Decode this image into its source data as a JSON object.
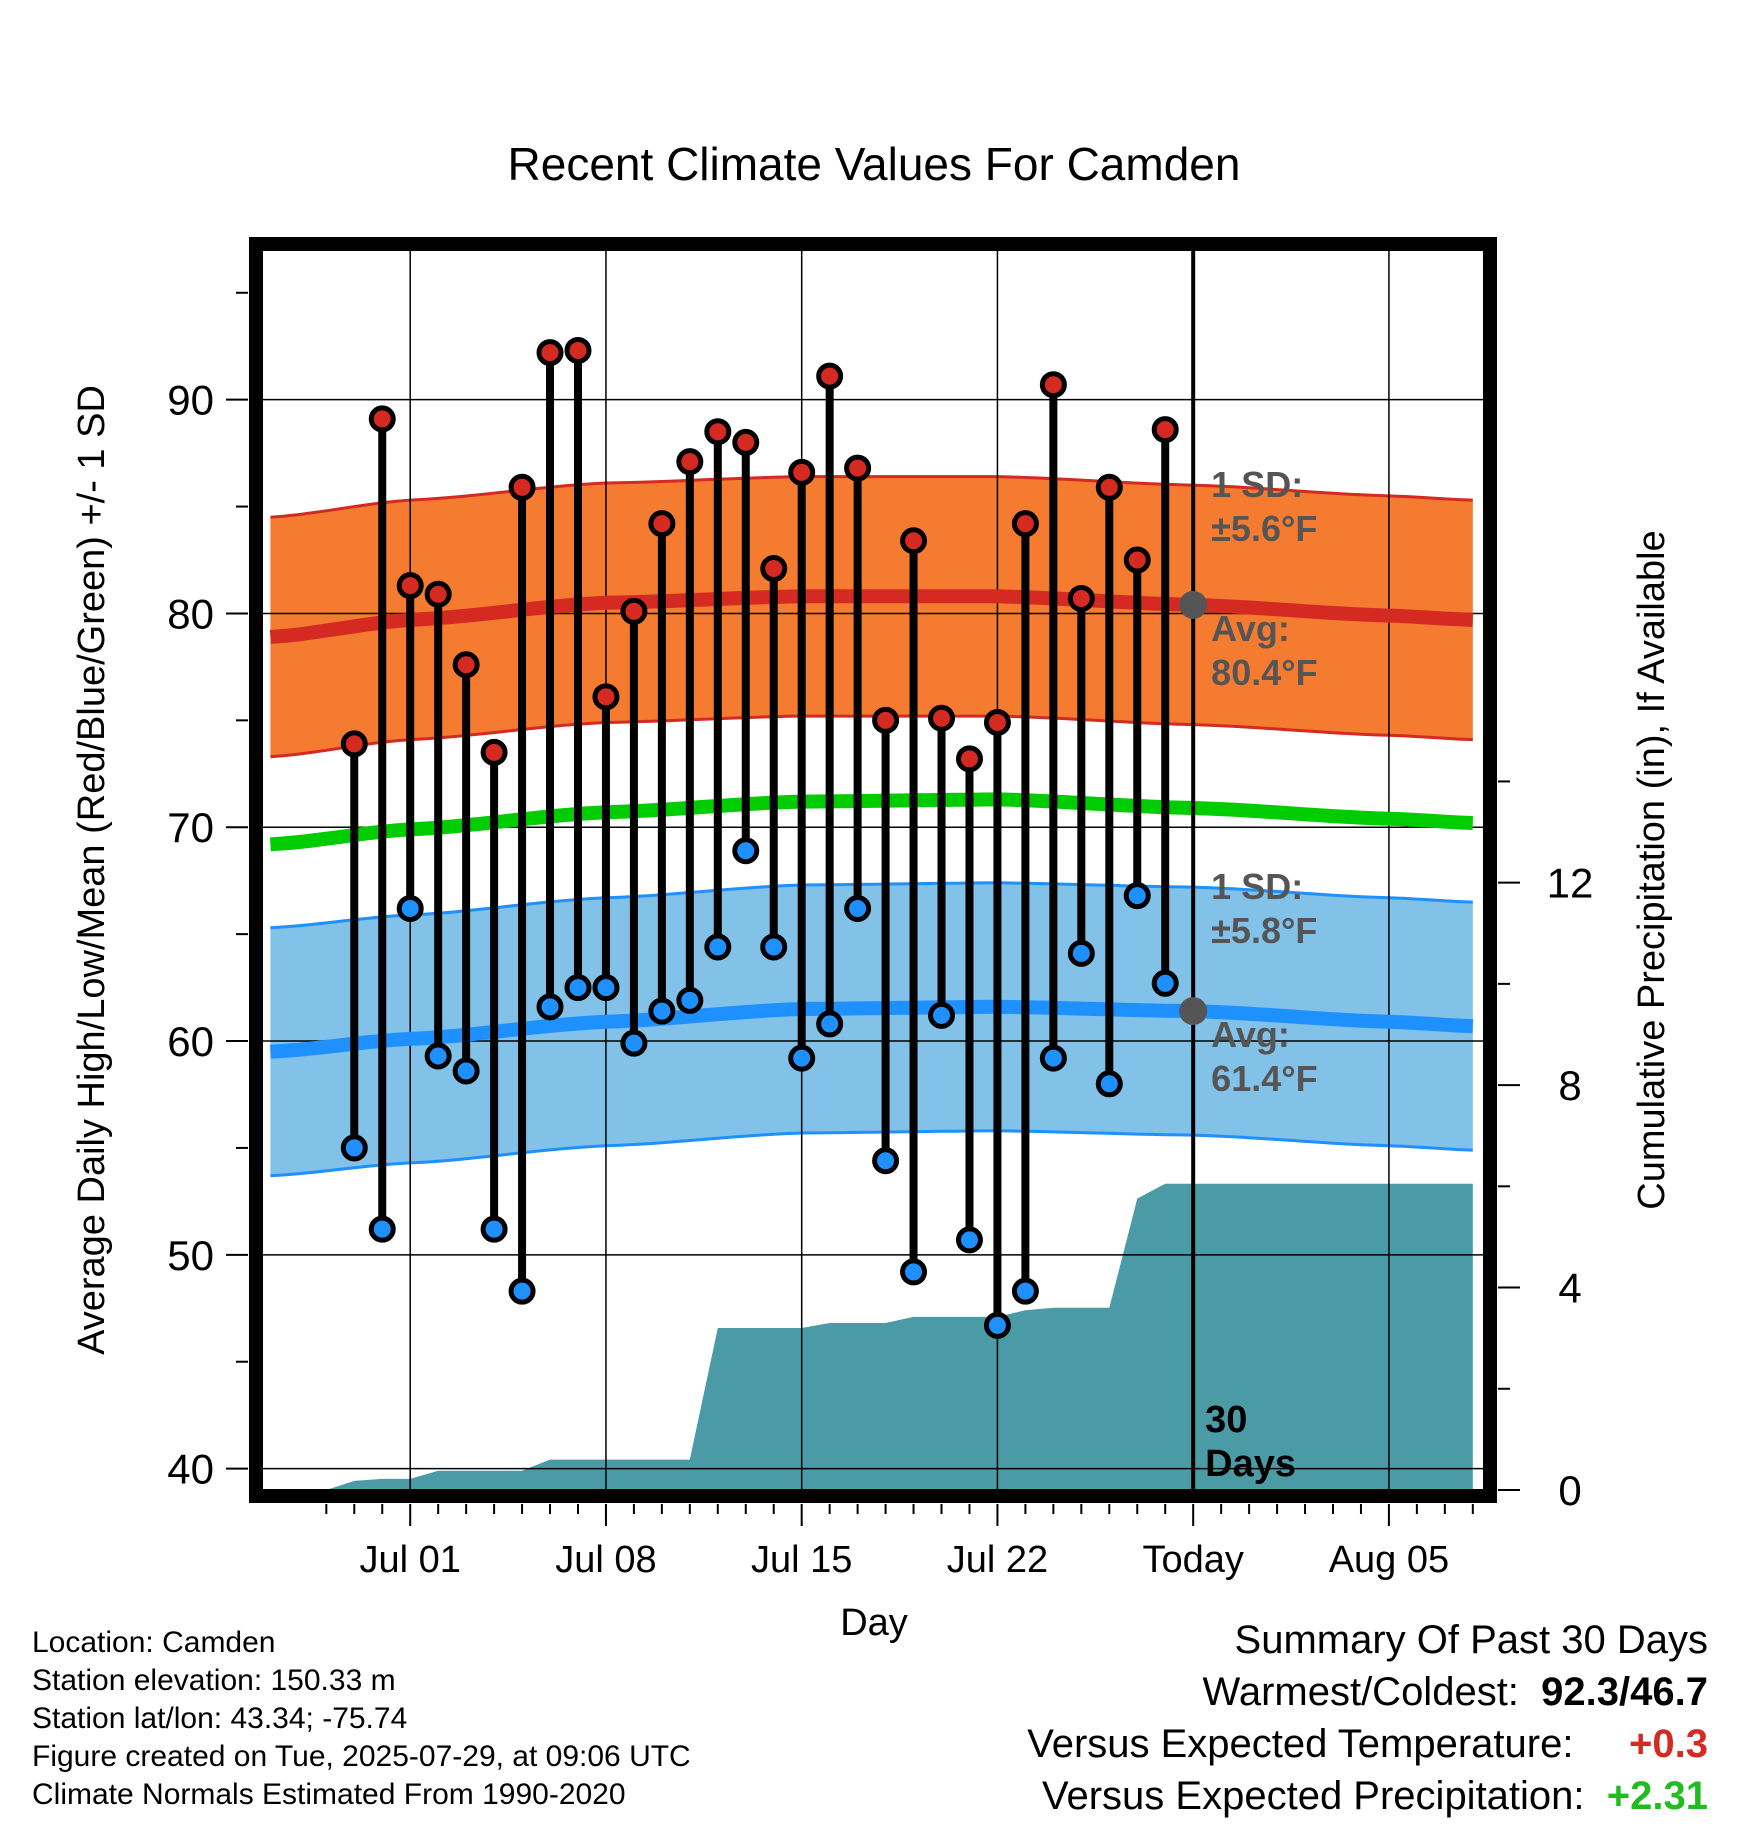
{
  "chart_data": {
    "type": "line",
    "title": "Recent Climate Values For Camden",
    "xlabel": "Day",
    "ylabel": "Average Daily High/Low/Mean (Red/Blue/Green) +/- 1 SD",
    "y2label": "Cumulative Precipitation (in), If Available",
    "ylim": [
      39,
      97
    ],
    "y2lim": [
      0,
      24.5
    ],
    "yticks": [
      40,
      50,
      60,
      70,
      80,
      90
    ],
    "y2ticks": [
      0,
      4,
      8,
      12
    ],
    "xlim_days": [
      -33.3,
      10.4
    ],
    "xticks": [
      {
        "day": -28,
        "label": "Jul 01"
      },
      {
        "day": -21,
        "label": "Jul 08"
      },
      {
        "day": -14,
        "label": "Jul 15"
      },
      {
        "day": -7,
        "label": "Jul 22"
      },
      {
        "day": 0,
        "label": "Today"
      },
      {
        "day": 7,
        "label": "Aug 05"
      }
    ],
    "grid": true,
    "highs": [
      73.9,
      89.1,
      81.3,
      80.9,
      77.6,
      73.5,
      85.9,
      92.2,
      92.3,
      76.1,
      80.1,
      84.2,
      87.1,
      88.5,
      88.0,
      82.1,
      86.6,
      91.1,
      86.8,
      75.0,
      83.4,
      75.1,
      73.2,
      74.9,
      84.2,
      90.7,
      80.7,
      85.9,
      82.5,
      88.6
    ],
    "lows": [
      55.0,
      51.2,
      66.2,
      59.3,
      58.6,
      51.2,
      48.3,
      61.6,
      62.5,
      62.5,
      59.9,
      61.4,
      61.9,
      64.4,
      68.9,
      64.4,
      59.2,
      60.8,
      66.2,
      54.4,
      49.2,
      61.2,
      50.7,
      46.7,
      48.3,
      59.2,
      64.1,
      58.0,
      66.8,
      62.7
    ],
    "normal_days": [
      -33,
      -28,
      -21,
      -14,
      -7,
      0,
      7,
      10
    ],
    "normal_high_avg": [
      78.9,
      79.7,
      80.5,
      80.8,
      80.8,
      80.4,
      79.9,
      79.7
    ],
    "normal_low_avg": [
      59.5,
      60.1,
      60.9,
      61.5,
      61.6,
      61.4,
      60.9,
      60.7
    ],
    "normal_mean": [
      69.2,
      69.9,
      70.7,
      71.2,
      71.3,
      70.9,
      70.4,
      70.2
    ],
    "high_sd": 5.6,
    "low_sd": 5.8,
    "precip_days": [
      -32,
      -31,
      -30,
      -29,
      -28,
      -27,
      -26,
      -25,
      -24,
      -23,
      -22,
      -21,
      -20,
      -19,
      -18,
      -17,
      -16,
      -15,
      -14,
      -13,
      -12,
      -11,
      -10,
      -9,
      -8,
      -7,
      -6,
      -5,
      -4,
      -3,
      -2,
      -1,
      0,
      10
    ],
    "precip_cum": [
      0.0,
      0.0,
      0.18,
      0.22,
      0.22,
      0.38,
      0.38,
      0.38,
      0.38,
      0.6,
      0.6,
      0.6,
      0.6,
      0.6,
      0.6,
      3.2,
      3.2,
      3.2,
      3.2,
      3.3,
      3.3,
      3.3,
      3.42,
      3.42,
      3.42,
      3.42,
      3.55,
      3.6,
      3.6,
      3.6,
      5.76,
      6.05,
      6.05,
      6.05
    ],
    "today_label": "30\nDays",
    "annotations": {
      "high_sd_label": "1 SD:",
      "high_sd_value": "±5.6°F",
      "high_avg_label": "Avg:",
      "high_avg_value": "80.4°F",
      "low_sd_label": "1 SD:",
      "low_sd_value": "±5.8°F",
      "low_avg_label": "Avg:",
      "low_avg_value": "61.4°F"
    },
    "colors": {
      "high_band": "#f47b30",
      "high_line": "#d42a22",
      "low_band": "#82c1e8",
      "low_line": "#1e90ff",
      "mean_line": "#00cc00",
      "precip": "#4a9ba5",
      "high_marker": "#d42a22",
      "low_marker": "#1e90ff",
      "today_marker": "#555555"
    }
  },
  "info": {
    "location": "Location: Camden",
    "elevation": "Station elevation: 150.33 m",
    "latlon": "Station lat/lon: 43.34; -75.74",
    "created": "Figure created on Tue, 2025-07-29, at 09:06 UTC",
    "normals": "Climate Normals Estimated From 1990-2020"
  },
  "summary": {
    "title": "Summary Of Past 30 Days",
    "warmest_label": "Warmest/Coldest:",
    "warmest_value": "92.3",
    "sep": "/",
    "coldest_value": "46.7",
    "temp_label": "Versus Expected Temperature:",
    "temp_value": "+0.3",
    "temp_color": "#d42a22",
    "precip_label": "Versus Expected Precipitation:",
    "precip_value": "+2.31",
    "precip_color": "#22bb22"
  }
}
